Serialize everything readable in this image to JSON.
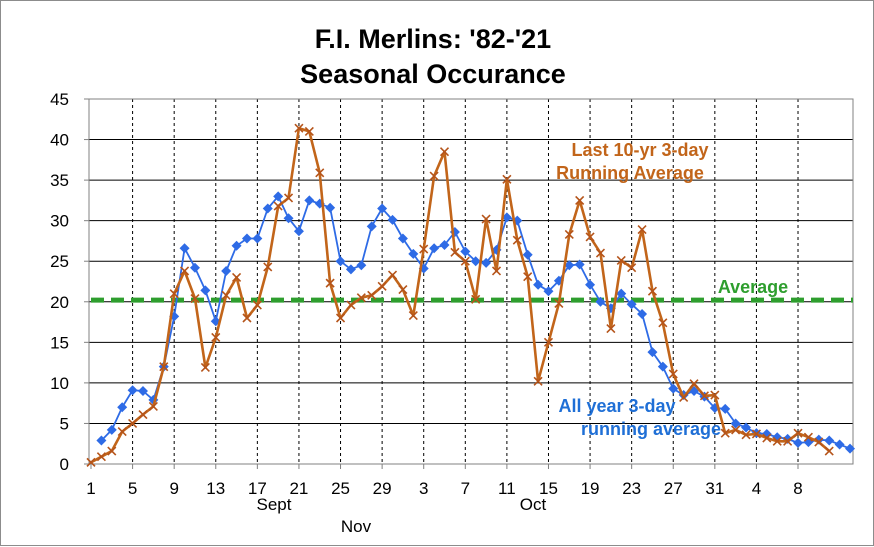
{
  "chart_data": {
    "type": "line",
    "title_line1": "F.I. Merlins: '82-'21",
    "title_line2": "Seasonal Occurance",
    "ylim": [
      0,
      45
    ],
    "yticks": [
      "0",
      "5",
      "10",
      "15",
      "20",
      "25",
      "30",
      "35",
      "40",
      "45"
    ],
    "x_tick_labels": [
      "1",
      "5",
      "9",
      "13",
      "17",
      "21",
      "25",
      "29",
      "3",
      "7",
      "11",
      "15",
      "19",
      "23",
      "27",
      "31",
      "4",
      "8"
    ],
    "month_labels": [
      "Sept",
      "Oct",
      "Nov"
    ],
    "grid": true,
    "average_value": 20.2,
    "annotations": {
      "average": "Average",
      "ten_year_line1": "Last 10-yr 3-day",
      "ten_year_line2": "Running Average",
      "all_year_line1": "All year 3-day",
      "all_year_line2": "running average"
    },
    "colors": {
      "all_year": "#2e6be6",
      "all_year_text": "#1f6fd6",
      "ten_year": "#c2651a",
      "ten_year_marker": "#b5541a",
      "average": "#2e9e2e",
      "grid": "#000000",
      "axis": "#808080"
    },
    "series": [
      {
        "key": "all_year",
        "marker": "diamond",
        "values": [
          null,
          2.9,
          4.2,
          7.0,
          9.1,
          9.0,
          7.9,
          12.0,
          18.2,
          26.6,
          24.2,
          21.4,
          17.6,
          23.8,
          26.9,
          27.8,
          27.8,
          31.5,
          33.0,
          30.3,
          28.7,
          32.5,
          32.1,
          31.6,
          25.0,
          24.0,
          24.5,
          29.3,
          31.5,
          30.1,
          27.8,
          25.9,
          24.1,
          26.6,
          27.0,
          28.6,
          26.2,
          25.0,
          24.8,
          26.4,
          30.4,
          30.0,
          25.8,
          22.1,
          21.3,
          22.6,
          24.5,
          24.6,
          22.1,
          20.0,
          19.2,
          21.0,
          19.7,
          18.5,
          13.8,
          12.0,
          9.3,
          8.5,
          9.0,
          8.3,
          6.9,
          6.8,
          5.0,
          4.5,
          3.8,
          3.7,
          3.3,
          3.1,
          2.6,
          2.7,
          3.0,
          2.9,
          2.4,
          1.9
        ]
      },
      {
        "key": "ten_year",
        "marker": "x",
        "values": [
          0.2,
          0.9,
          1.6,
          4.0,
          5.0,
          6.1,
          7.1,
          12.0,
          21.0,
          23.8,
          20.4,
          11.9,
          15.6,
          20.8,
          23.0,
          18.0,
          19.6,
          24.3,
          31.8,
          32.8,
          41.4,
          41.0,
          35.9,
          22.3,
          18.0,
          19.6,
          20.5,
          20.8,
          21.9,
          23.3,
          21.5,
          18.3,
          26.5,
          35.5,
          38.5,
          26.1,
          25.0,
          20.3,
          30.2,
          23.8,
          35.1,
          27.6,
          23.1,
          10.2,
          15.0,
          19.8,
          28.3,
          32.5,
          28.0,
          26.0,
          16.7,
          25.1,
          24.2,
          28.9,
          21.3,
          17.4,
          11.1,
          8.2,
          9.9,
          8.4,
          8.5,
          3.8,
          4.2,
          3.6,
          3.7,
          3.2,
          2.8,
          2.8,
          3.8,
          3.3,
          2.7,
          1.6
        ]
      }
    ]
  }
}
